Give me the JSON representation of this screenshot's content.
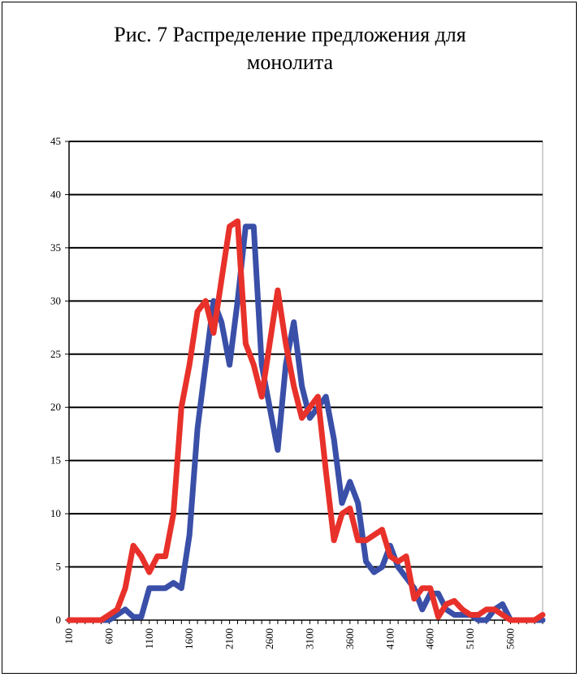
{
  "chart_data": {
    "type": "line",
    "title": "Рис. 7 Распределение предложения для монолита",
    "title_lines": [
      "Рис. 7 Распределение предложения для",
      "монолита"
    ],
    "xlabel": "",
    "ylabel": "",
    "ylim": [
      0,
      45
    ],
    "y_ticks": [
      0,
      5,
      10,
      15,
      20,
      25,
      30,
      35,
      40,
      45
    ],
    "x_tick_labels": [
      "100",
      "600",
      "1100",
      "1600",
      "2100",
      "2600",
      "3100",
      "3600",
      "4100",
      "4600",
      "5100",
      "5600"
    ],
    "x": [
      100,
      200,
      300,
      400,
      500,
      600,
      700,
      800,
      900,
      1000,
      1100,
      1200,
      1300,
      1400,
      1500,
      1600,
      1700,
      1800,
      1900,
      2000,
      2100,
      2200,
      2300,
      2400,
      2500,
      2600,
      2700,
      2800,
      2900,
      3000,
      3100,
      3200,
      3300,
      3400,
      3500,
      3600,
      3700,
      3800,
      3900,
      4000,
      4100,
      4200,
      4300,
      4400,
      4500,
      4600,
      4700,
      4800,
      4900,
      5000,
      5100,
      5200,
      5300,
      5400,
      5500,
      5600,
      5700,
      5800,
      5900,
      6000
    ],
    "grid": true,
    "legend": "none",
    "series": [
      {
        "color": "#3a4fa8",
        "values": [
          0,
          0,
          0,
          0,
          0,
          0,
          0.5,
          1,
          0.3,
          0.3,
          3,
          3,
          3,
          3.5,
          3,
          8,
          18,
          24,
          30,
          28,
          24,
          30,
          37,
          37,
          24,
          20,
          16,
          24,
          28,
          22,
          19,
          20,
          21,
          17,
          11,
          13,
          11,
          5.5,
          4.5,
          5,
          7,
          5,
          4,
          3,
          1,
          2.5,
          2.5,
          1,
          0.5,
          0.5,
          0.5,
          0,
          0,
          1,
          1.5,
          0,
          0,
          0,
          0,
          0
        ]
      },
      {
        "color": "#e8312a",
        "values": [
          0,
          0,
          0,
          0,
          0,
          0.5,
          1,
          3,
          7,
          6,
          4.5,
          6,
          6,
          10,
          20,
          24,
          29,
          30,
          27,
          32,
          37,
          37.5,
          26,
          24,
          21,
          26,
          31,
          26,
          22,
          19,
          20,
          21,
          14,
          7.5,
          10,
          10.5,
          7.5,
          7.5,
          8,
          8.5,
          6,
          5.5,
          6,
          2,
          3,
          3,
          0.3,
          1.5,
          1.8,
          1,
          0.5,
          0.5,
          1,
          1,
          0.5,
          0,
          0,
          0,
          0,
          0.5
        ]
      }
    ]
  }
}
